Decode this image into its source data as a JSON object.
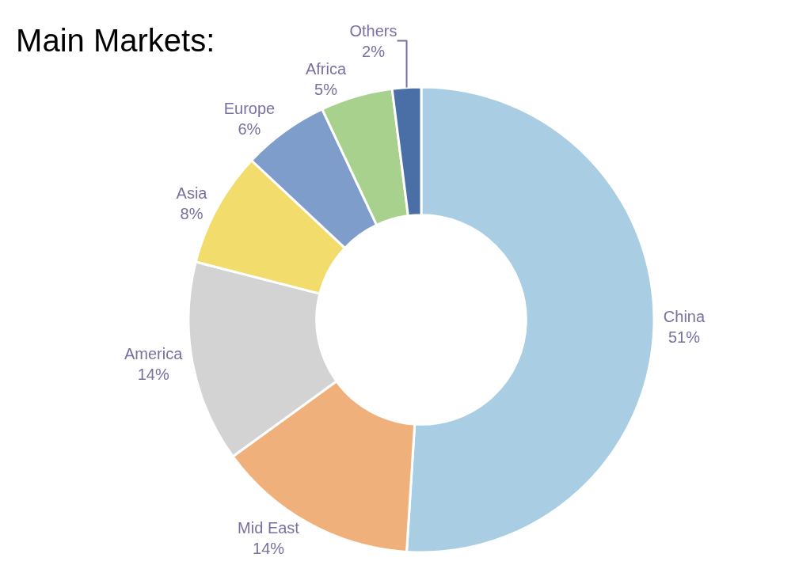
{
  "chart_data": {
    "type": "donut",
    "title": "Main Markets:",
    "categories": [
      "China",
      "Mid East",
      "America",
      "Asia",
      "Europe",
      "Africa",
      "Others"
    ],
    "values": [
      51,
      14,
      14,
      8,
      6,
      5,
      2
    ],
    "value_labels": [
      "51%",
      "14%",
      "14%",
      "8%",
      "6%",
      "5%",
      "2%"
    ],
    "colors": [
      "#a9cde3",
      "#f0b07c",
      "#d3d3d3",
      "#f2dc6c",
      "#7f9dca",
      "#a9d18e",
      "#4a6fa6"
    ],
    "legend": false
  }
}
